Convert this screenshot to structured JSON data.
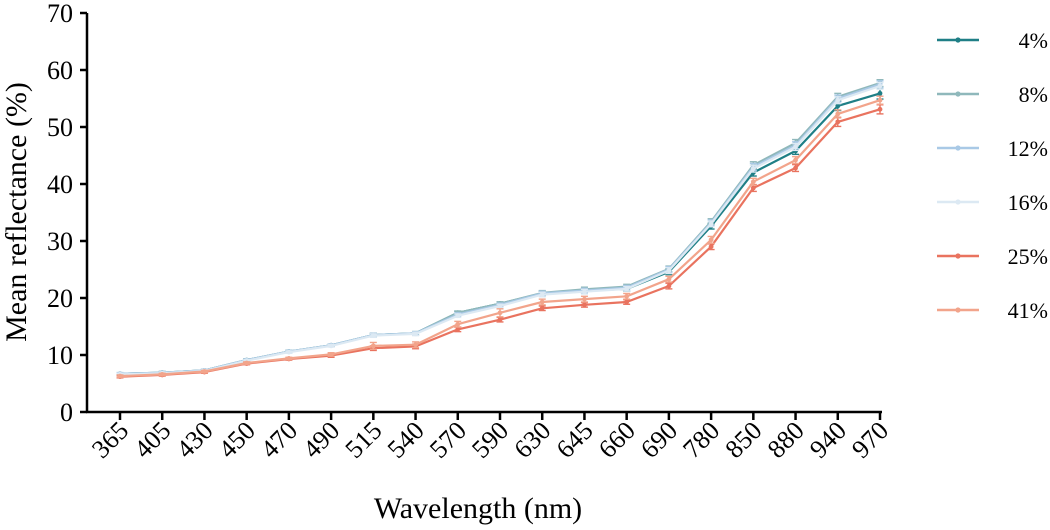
{
  "chart_data": {
    "type": "line",
    "title": "",
    "xlabel": "Wavelength (nm)",
    "ylabel": "Mean reflectance (%)",
    "ylim": [
      0,
      70
    ],
    "yticks": [
      0,
      10,
      20,
      30,
      40,
      50,
      60,
      70
    ],
    "grid": false,
    "legend_position": "right",
    "categories": [
      "365",
      "405",
      "430",
      "450",
      "470",
      "490",
      "515",
      "540",
      "570",
      "590",
      "630",
      "645",
      "660",
      "690",
      "780",
      "850",
      "880",
      "940",
      "970"
    ],
    "series": [
      {
        "name": "4%",
        "color": "#1f7f86",
        "values": [
          6.7,
          6.9,
          7.3,
          9.1,
          10.6,
          11.7,
          13.5,
          13.8,
          17.4,
          19.0,
          20.8,
          21.3,
          21.6,
          24.6,
          32.6,
          42.0,
          45.8,
          53.7,
          55.9
        ],
        "errors": [
          0.2,
          0.2,
          0.2,
          0.2,
          0.2,
          0.2,
          0.3,
          0.3,
          0.3,
          0.3,
          0.4,
          0.4,
          0.4,
          0.5,
          0.5,
          0.6,
          0.6,
          0.8,
          1.0
        ]
      },
      {
        "name": "8%",
        "color": "#8fb8bb",
        "values": [
          6.7,
          6.9,
          7.3,
          9.1,
          10.6,
          11.7,
          13.5,
          13.8,
          17.4,
          19.0,
          20.9,
          21.5,
          22.0,
          25.1,
          33.4,
          43.3,
          47.2,
          55.3,
          57.7
        ],
        "errors": [
          0.2,
          0.2,
          0.2,
          0.2,
          0.2,
          0.2,
          0.3,
          0.3,
          0.3,
          0.3,
          0.4,
          0.4,
          0.4,
          0.5,
          0.5,
          0.6,
          0.6,
          0.6,
          0.6
        ]
      },
      {
        "name": "12%",
        "color": "#a9c9e6",
        "values": [
          6.7,
          6.9,
          7.3,
          9.1,
          10.6,
          11.7,
          13.5,
          13.8,
          17.1,
          18.8,
          20.8,
          21.3,
          21.8,
          25.0,
          33.2,
          43.0,
          46.8,
          55.0,
          57.5
        ],
        "errors": [
          0.2,
          0.2,
          0.2,
          0.2,
          0.2,
          0.2,
          0.3,
          0.3,
          0.3,
          0.3,
          0.4,
          0.4,
          0.4,
          0.5,
          0.5,
          0.6,
          0.6,
          0.6,
          0.6
        ]
      },
      {
        "name": "16%",
        "color": "#dce9f3",
        "values": [
          6.6,
          6.8,
          7.2,
          9.0,
          10.5,
          11.6,
          13.4,
          13.7,
          16.9,
          18.6,
          20.6,
          21.1,
          21.6,
          24.8,
          33.0,
          42.7,
          46.5,
          54.7,
          57.2
        ],
        "errors": [
          0.2,
          0.2,
          0.2,
          0.2,
          0.2,
          0.2,
          0.3,
          0.3,
          0.3,
          0.3,
          0.4,
          0.4,
          0.4,
          0.5,
          0.5,
          0.6,
          0.6,
          0.6,
          0.6
        ]
      },
      {
        "name": "25%",
        "color": "#e9735f",
        "values": [
          6.2,
          6.5,
          7.0,
          8.5,
          9.3,
          9.9,
          11.2,
          11.5,
          14.5,
          16.2,
          18.2,
          18.8,
          19.3,
          22.1,
          29.0,
          39.3,
          42.8,
          50.9,
          53.1
        ],
        "errors": [
          0.2,
          0.2,
          0.2,
          0.2,
          0.2,
          0.3,
          0.4,
          0.4,
          0.4,
          0.4,
          0.4,
          0.4,
          0.4,
          0.5,
          0.5,
          0.6,
          0.6,
          0.8,
          0.8
        ]
      },
      {
        "name": "41%",
        "color": "#f2a48b",
        "values": [
          6.3,
          6.6,
          7.1,
          8.6,
          9.4,
          10.1,
          11.6,
          11.8,
          15.4,
          17.4,
          19.3,
          19.8,
          20.3,
          23.3,
          30.2,
          40.4,
          44.2,
          52.3,
          54.7
        ],
        "errors": [
          0.2,
          0.2,
          0.2,
          0.2,
          0.2,
          0.3,
          0.6,
          0.5,
          0.5,
          0.7,
          0.5,
          0.5,
          0.5,
          0.5,
          0.6,
          0.6,
          0.6,
          0.7,
          0.7
        ]
      }
    ]
  }
}
